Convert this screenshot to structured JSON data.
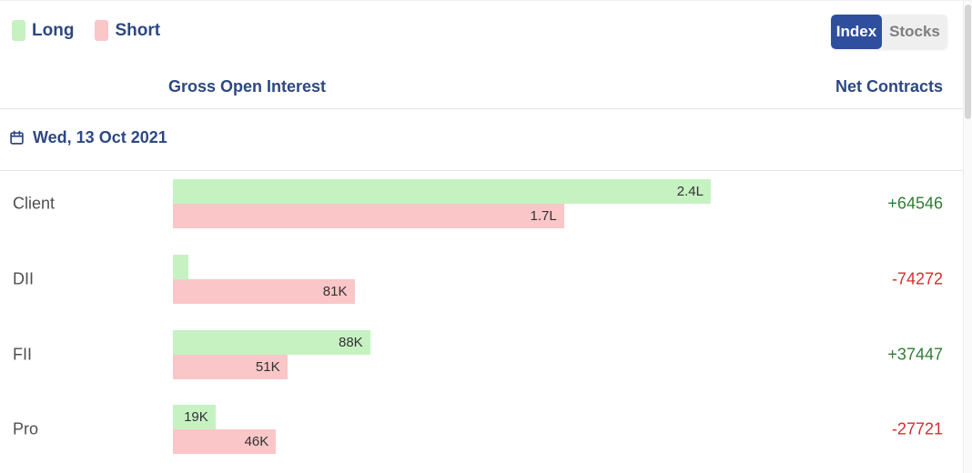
{
  "legend": {
    "long_label": "Long",
    "short_label": "Short"
  },
  "view_toggle": {
    "index_label": "Index",
    "stocks_label": "Stocks",
    "selected": "Index"
  },
  "column_headers": {
    "gross": "Gross Open Interest",
    "net": "Net Contracts"
  },
  "date_row": {
    "label": "Wed, 13 Oct 2021",
    "icon": "calendar-icon"
  },
  "colors": {
    "long_bar": "#c6f2c2",
    "short_bar": "#fac6c8",
    "positive": "#2e7d32",
    "negative": "#d32f2f",
    "heading": "#2d4882",
    "toggle_active_bg": "#2f4f9e",
    "toggle_active_text": "#ffffff",
    "toggle_inactive_bg": "#efefef",
    "toggle_inactive_text": "#7e7e7e"
  },
  "chart_data": {
    "type": "bar",
    "orientation": "horizontal",
    "title": "Gross Open Interest",
    "date": "Wed, 13 Oct 2021",
    "categories": [
      "Client",
      "DII",
      "FII",
      "Pro"
    ],
    "series": [
      {
        "name": "Long",
        "values": [
          240000,
          6700,
          88000,
          19000
        ],
        "labels": [
          "2.4L",
          "",
          "88K",
          "19K"
        ]
      },
      {
        "name": "Short",
        "values": [
          174500,
          81000,
          51000,
          46000
        ],
        "labels": [
          "1.7L",
          "81K",
          "51K",
          "46K"
        ]
      }
    ],
    "net_contracts": [
      {
        "category": "Client",
        "label": "+64546",
        "sign": "positive"
      },
      {
        "category": "DII",
        "label": "-74272",
        "sign": "negative"
      },
      {
        "category": "FII",
        "label": "+37447",
        "sign": "positive"
      },
      {
        "category": "Pro",
        "label": "-27721",
        "sign": "negative"
      }
    ],
    "max_value": 240000,
    "legend_position": "top-left",
    "grid": false
  }
}
